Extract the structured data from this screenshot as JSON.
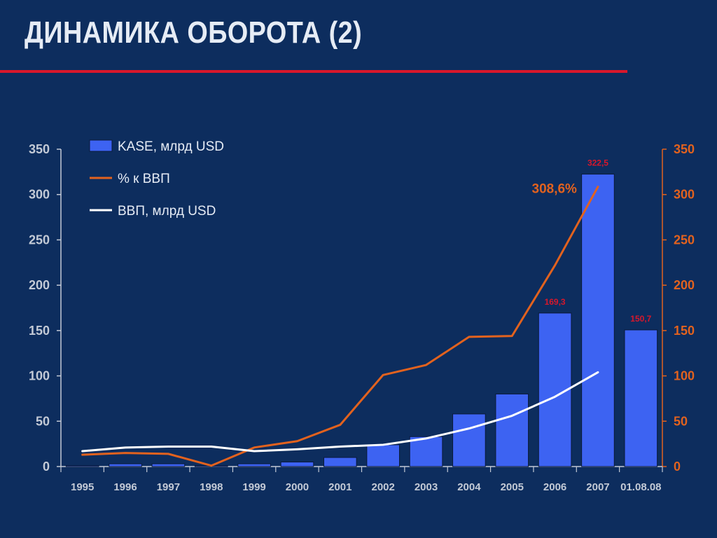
{
  "title": "ДИНАМИКА ОБОРОТА (2)",
  "chart_data": {
    "type": "bar",
    "categories": [
      "1995",
      "1996",
      "1997",
      "1998",
      "1999",
      "2000",
      "2001",
      "2002",
      "2003",
      "2004",
      "2005",
      "2006",
      "2007",
      "01.08.08"
    ],
    "series": [
      {
        "name": "KASE, млрд USD",
        "type": "bar",
        "axis": "left",
        "values": [
          1,
          3,
          3,
          1,
          3,
          5,
          10,
          24,
          33,
          58,
          80,
          169.3,
          322.5,
          150.7
        ],
        "data_labels": [
          "",
          "",
          "",
          "",
          "",
          "",
          "",
          "",
          "",
          "",
          "",
          "169,3",
          "322,5",
          "150,7"
        ]
      },
      {
        "name": "% к ВВП",
        "type": "line",
        "axis": "right",
        "values": [
          13,
          15,
          14,
          1,
          21,
          28,
          46,
          101,
          112,
          143,
          144,
          222,
          308.6,
          null
        ],
        "end_label": "308,6%"
      },
      {
        "name": "ВВП, млрд USD",
        "type": "line",
        "axis": "left",
        "values": [
          17,
          21,
          22,
          22,
          17,
          19,
          22,
          24,
          31,
          42,
          56,
          77,
          104,
          null
        ]
      }
    ],
    "ylim": [
      0,
      350
    ],
    "y2lim": [
      0,
      350
    ],
    "yticks": [
      "0",
      "50",
      "100",
      "150",
      "200",
      "250",
      "300",
      "350"
    ],
    "y2ticks": [
      "0",
      "50",
      "100",
      "150",
      "200",
      "250",
      "300",
      "350"
    ],
    "legend_position": "top-left",
    "grid": false
  },
  "colors": {
    "background": "#0d2d5e",
    "bar_fill": "#3d63f2",
    "bar_edge": "#0a1a3a",
    "pct_line": "#e2621e",
    "gdp_line": "#ffffff",
    "left_axis": "#c3cad6",
    "right_axis": "#e2621e",
    "data_label": "#d8172b",
    "text": "#e6ecf5",
    "title_rule": "#d8172b"
  }
}
